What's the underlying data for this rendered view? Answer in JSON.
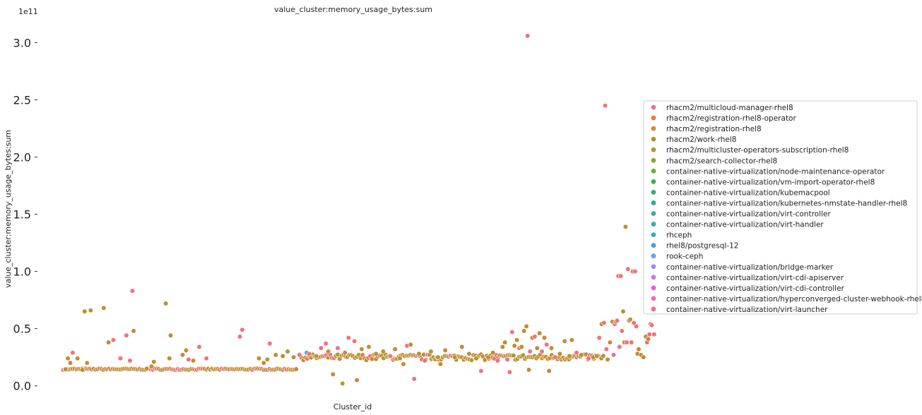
{
  "chart_data": {
    "type": "scatter",
    "title": "value_cluster:memory_usage_bytes:sum",
    "xlabel": "Cluster_id",
    "ylabel": "value_cluster:memory_usage_bytes:sum",
    "offset_label": "1e11",
    "x_ticks_shown": false,
    "grid": false,
    "legend_position": "center-right",
    "xlim": [
      0,
      600
    ],
    "ylim": [
      -0.07,
      3.2
    ],
    "y_ticks": [
      0.0,
      0.5,
      1.0,
      1.5,
      2.0,
      2.5,
      3.0
    ],
    "y_tick_labels": [
      "0.0",
      "0.5",
      "1.0",
      "1.5",
      "2.0",
      "2.5",
      "3.0"
    ],
    "series": [
      {
        "name": "rhacm2/multicloud-manager-rhel8",
        "color": "#f0727a"
      },
      {
        "name": "rhacm2/registration-rhel8-operator",
        "color": "#e8784f"
      },
      {
        "name": "rhacm2/registration-rhel8",
        "color": "#d28a3c"
      },
      {
        "name": "rhacm2/work-rhel8",
        "color": "#c18d33"
      },
      {
        "name": "rhacm2/multicluster-operators-subscription-rhel8",
        "color": "#a99a35"
      },
      {
        "name": "rhacm2/search-collector-rhel8",
        "color": "#92a135"
      },
      {
        "name": "container-native-virtualization/node-maintenance-operator",
        "color": "#6fab3b"
      },
      {
        "name": "container-native-virtualization/vm-import-operator-rhel8",
        "color": "#3bb043"
      },
      {
        "name": "container-native-virtualization/kubemacpool",
        "color": "#35ad79"
      },
      {
        "name": "container-native-virtualization/kubernetes-nmstate-handler-rhel8",
        "color": "#36ab95"
      },
      {
        "name": "container-native-virtualization/virt-controller",
        "color": "#38aaa7"
      },
      {
        "name": "container-native-virtualization/virt-handler",
        "color": "#39a8b5"
      },
      {
        "name": "rhceph",
        "color": "#3aa6c4"
      },
      {
        "name": "rhel8/postgresql-12",
        "color": "#3ba2d9"
      },
      {
        "name": "rook-ceph",
        "color": "#6f9be8"
      },
      {
        "name": "container-native-virtualization/bridge-marker",
        "color": "#a28de9"
      },
      {
        "name": "container-native-virtualization/virt-cdi-apiserver",
        "color": "#c47ae8"
      },
      {
        "name": "container-native-virtualization/virt-cdi-controller",
        "color": "#e85fd8"
      },
      {
        "name": "container-native-virtualization/hyperconverged-cluster-webhook-rhel8",
        "color": "#ee66b8"
      },
      {
        "name": "container-native-virtualization/virt-launcher",
        "color": "#f06aa0"
      }
    ],
    "points": [
      {
        "x": 4,
        "y": 0.145,
        "s": 3
      },
      {
        "x": 6,
        "y": 0.24,
        "s": 3
      },
      {
        "x": 8,
        "y": 0.2,
        "s": 3
      },
      {
        "x": 10,
        "y": 0.29,
        "s": 0
      },
      {
        "x": 14,
        "y": 0.24,
        "s": 3
      },
      {
        "x": 18,
        "y": 0.14,
        "s": 3
      },
      {
        "x": 20,
        "y": 0.65,
        "s": 3
      },
      {
        "x": 22,
        "y": 0.2,
        "s": 3
      },
      {
        "x": 25,
        "y": 0.66,
        "s": 3
      },
      {
        "x": 36,
        "y": 0.68,
        "s": 3
      },
      {
        "x": 40,
        "y": 0.38,
        "s": 3
      },
      {
        "x": 44,
        "y": 0.4,
        "s": 0
      },
      {
        "x": 50,
        "y": 0.24,
        "s": 0
      },
      {
        "x": 55,
        "y": 0.44,
        "s": 0
      },
      {
        "x": 58,
        "y": 0.22,
        "s": 0
      },
      {
        "x": 60,
        "y": 0.83,
        "s": 0
      },
      {
        "x": 61,
        "y": 0.48,
        "s": 3
      },
      {
        "x": 72,
        "y": 0.15,
        "s": 3
      },
      {
        "x": 76,
        "y": 0.17,
        "s": 3
      },
      {
        "x": 78,
        "y": 0.21,
        "s": 3
      },
      {
        "x": 88,
        "y": 0.72,
        "s": 3
      },
      {
        "x": 91,
        "y": 0.24,
        "s": 3
      },
      {
        "x": 92,
        "y": 0.44,
        "s": 3
      },
      {
        "x": 102,
        "y": 0.27,
        "s": 3
      },
      {
        "x": 105,
        "y": 0.31,
        "s": 3
      },
      {
        "x": 107,
        "y": 0.23,
        "s": 0
      },
      {
        "x": 111,
        "y": 0.22,
        "s": 3
      },
      {
        "x": 116,
        "y": 0.34,
        "s": 0
      },
      {
        "x": 122,
        "y": 0.24,
        "s": 0
      },
      {
        "x": 150,
        "y": 0.43,
        "s": 0
      },
      {
        "x": 152,
        "y": 0.49,
        "s": 0
      },
      {
        "x": 166,
        "y": 0.24,
        "s": 3
      },
      {
        "x": 170,
        "y": 0.2,
        "s": 3
      },
      {
        "x": 173,
        "y": 0.23,
        "s": 3
      },
      {
        "x": 175,
        "y": 0.37,
        "s": 0
      },
      {
        "x": 180,
        "y": 0.27,
        "s": 3
      },
      {
        "x": 186,
        "y": 0.26,
        "s": 3
      },
      {
        "x": 190,
        "y": 0.3,
        "s": 3
      },
      {
        "x": 195,
        "y": 0.25,
        "s": 3
      },
      {
        "x": 200,
        "y": 0.27,
        "s": 0
      },
      {
        "x": 206,
        "y": 0.29,
        "s": 12
      },
      {
        "x": 208,
        "y": 0.28,
        "s": 0
      },
      {
        "x": 214,
        "y": 0.26,
        "s": 3
      },
      {
        "x": 218,
        "y": 0.33,
        "s": 0
      },
      {
        "x": 222,
        "y": 0.37,
        "s": 0
      },
      {
        "x": 224,
        "y": 0.3,
        "s": 3
      },
      {
        "x": 228,
        "y": 0.1,
        "s": 3
      },
      {
        "x": 232,
        "y": 0.33,
        "s": 0
      },
      {
        "x": 236,
        "y": 0.02,
        "s": 3
      },
      {
        "x": 238,
        "y": 0.29,
        "s": 3
      },
      {
        "x": 241,
        "y": 0.42,
        "s": 0
      },
      {
        "x": 246,
        "y": 0.39,
        "s": 0
      },
      {
        "x": 248,
        "y": 0.05,
        "s": 3
      },
      {
        "x": 252,
        "y": 0.32,
        "s": 3
      },
      {
        "x": 258,
        "y": 0.34,
        "s": 3
      },
      {
        "x": 264,
        "y": 0.28,
        "s": 3
      },
      {
        "x": 270,
        "y": 0.3,
        "s": 3
      },
      {
        "x": 276,
        "y": 0.26,
        "s": 0
      },
      {
        "x": 280,
        "y": 0.32,
        "s": 3
      },
      {
        "x": 284,
        "y": 0.24,
        "s": 3
      },
      {
        "x": 287,
        "y": 0.19,
        "s": 3
      },
      {
        "x": 290,
        "y": 0.35,
        "s": 0
      },
      {
        "x": 293,
        "y": 0.36,
        "s": 3
      },
      {
        "x": 296,
        "y": 0.06,
        "s": 0
      },
      {
        "x": 300,
        "y": 0.28,
        "s": 3
      },
      {
        "x": 305,
        "y": 0.22,
        "s": 0
      },
      {
        "x": 310,
        "y": 0.3,
        "s": 3
      },
      {
        "x": 316,
        "y": 0.25,
        "s": 3
      },
      {
        "x": 318,
        "y": 0.19,
        "s": 3
      },
      {
        "x": 322,
        "y": 0.31,
        "s": 3
      },
      {
        "x": 330,
        "y": 0.25,
        "s": 3
      },
      {
        "x": 336,
        "y": 0.34,
        "s": 3
      },
      {
        "x": 342,
        "y": 0.28,
        "s": 3
      },
      {
        "x": 348,
        "y": 0.24,
        "s": 3
      },
      {
        "x": 352,
        "y": 0.13,
        "s": 0
      },
      {
        "x": 358,
        "y": 0.25,
        "s": 3
      },
      {
        "x": 362,
        "y": 0.29,
        "s": 3
      },
      {
        "x": 366,
        "y": 0.22,
        "s": 0
      },
      {
        "x": 370,
        "y": 0.34,
        "s": 3
      },
      {
        "x": 372,
        "y": 0.38,
        "s": 3
      },
      {
        "x": 374,
        "y": 0.23,
        "s": 0
      },
      {
        "x": 376,
        "y": 0.12,
        "s": 0
      },
      {
        "x": 378,
        "y": 0.47,
        "s": 0
      },
      {
        "x": 380,
        "y": 0.35,
        "s": 3
      },
      {
        "x": 382,
        "y": 0.4,
        "s": 3
      },
      {
        "x": 384,
        "y": 0.33,
        "s": 0
      },
      {
        "x": 386,
        "y": 0.34,
        "s": 3
      },
      {
        "x": 388,
        "y": 0.48,
        "s": 3
      },
      {
        "x": 390,
        "y": 0.52,
        "s": 3
      },
      {
        "x": 392,
        "y": 0.14,
        "s": 3
      },
      {
        "x": 393,
        "y": 0.3,
        "s": 0
      },
      {
        "x": 395,
        "y": 0.42,
        "s": 3
      },
      {
        "x": 391,
        "y": 3.06,
        "s": 0
      },
      {
        "x": 397,
        "y": 0.43,
        "s": 0
      },
      {
        "x": 399,
        "y": 0.33,
        "s": 3
      },
      {
        "x": 401,
        "y": 0.46,
        "s": 3
      },
      {
        "x": 403,
        "y": 0.3,
        "s": 0
      },
      {
        "x": 405,
        "y": 0.42,
        "s": 3
      },
      {
        "x": 407,
        "y": 0.36,
        "s": 0
      },
      {
        "x": 409,
        "y": 0.13,
        "s": 3
      },
      {
        "x": 411,
        "y": 0.33,
        "s": 3
      },
      {
        "x": 414,
        "y": 0.25,
        "s": 0
      },
      {
        "x": 418,
        "y": 0.28,
        "s": 3
      },
      {
        "x": 422,
        "y": 0.39,
        "s": 3
      },
      {
        "x": 426,
        "y": 0.26,
        "s": 3
      },
      {
        "x": 428,
        "y": 0.4,
        "s": 3
      },
      {
        "x": 432,
        "y": 0.29,
        "s": 0
      },
      {
        "x": 436,
        "y": 0.27,
        "s": 3
      },
      {
        "x": 442,
        "y": 0.24,
        "s": 0
      },
      {
        "x": 446,
        "y": 0.25,
        "s": 3
      },
      {
        "x": 449,
        "y": 0.26,
        "s": 3
      },
      {
        "x": 451,
        "y": 0.42,
        "s": 0
      },
      {
        "x": 453,
        "y": 0.54,
        "s": 3
      },
      {
        "x": 455,
        "y": 0.55,
        "s": 0
      },
      {
        "x": 456,
        "y": 2.45,
        "s": 0
      },
      {
        "x": 457,
        "y": 0.32,
        "s": 0
      },
      {
        "x": 458,
        "y": 0.23,
        "s": 3
      },
      {
        "x": 460,
        "y": 0.38,
        "s": 3
      },
      {
        "x": 462,
        "y": 0.56,
        "s": 3
      },
      {
        "x": 463,
        "y": 0.27,
        "s": 0
      },
      {
        "x": 464,
        "y": 0.54,
        "s": 0
      },
      {
        "x": 465,
        "y": 0.56,
        "s": 3
      },
      {
        "x": 466,
        "y": 0.57,
        "s": 0
      },
      {
        "x": 467,
        "y": 0.96,
        "s": 0
      },
      {
        "x": 468,
        "y": 0.34,
        "s": 0
      },
      {
        "x": 469,
        "y": 0.96,
        "s": 0
      },
      {
        "x": 470,
        "y": 0.48,
        "s": 0
      },
      {
        "x": 471,
        "y": 0.65,
        "s": 3
      },
      {
        "x": 472,
        "y": 0.38,
        "s": 3
      },
      {
        "x": 473,
        "y": 1.39,
        "s": 3
      },
      {
        "x": 474,
        "y": 0.38,
        "s": 0
      },
      {
        "x": 475,
        "y": 1.02,
        "s": 0
      },
      {
        "x": 476,
        "y": 0.57,
        "s": 3
      },
      {
        "x": 477,
        "y": 0.58,
        "s": 3
      },
      {
        "x": 478,
        "y": 0.38,
        "s": 0
      },
      {
        "x": 479,
        "y": 1.0,
        "s": 0
      },
      {
        "x": 480,
        "y": 0.55,
        "s": 0
      },
      {
        "x": 481,
        "y": 1.0,
        "s": 0
      },
      {
        "x": 482,
        "y": 0.52,
        "s": 0
      },
      {
        "x": 483,
        "y": 0.28,
        "s": 3
      },
      {
        "x": 484,
        "y": 0.32,
        "s": 3
      },
      {
        "x": 486,
        "y": 0.27,
        "s": 3
      },
      {
        "x": 488,
        "y": 0.25,
        "s": 3
      },
      {
        "x": 490,
        "y": 0.43,
        "s": 3
      },
      {
        "x": 491,
        "y": 0.38,
        "s": 0
      },
      {
        "x": 492,
        "y": 0.41,
        "s": 3
      },
      {
        "x": 493,
        "y": 0.45,
        "s": 0
      },
      {
        "x": 494,
        "y": 0.54,
        "s": 0
      },
      {
        "x": 495,
        "y": 0.53,
        "s": 0
      },
      {
        "x": 496,
        "y": 0.72,
        "s": 3
      },
      {
        "x": 497,
        "y": 0.45,
        "s": 0
      }
    ]
  }
}
